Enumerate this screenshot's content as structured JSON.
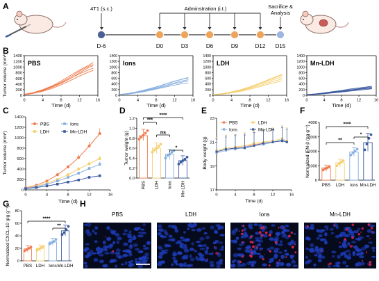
{
  "panels": {
    "A": {
      "letter": "A",
      "events": [
        {
          "day": "D-6",
          "label": "4T1 (s.c.)",
          "color": "#4a5f93"
        },
        {
          "day": "D0",
          "label": "",
          "color": "#eea45a"
        },
        {
          "day": "D3",
          "label": "",
          "color": "#eea45a"
        },
        {
          "day": "D6",
          "label": "",
          "color": "#eea45a"
        },
        {
          "day": "D9",
          "label": "",
          "color": "#eea45a"
        },
        {
          "day": "D12",
          "label": "",
          "color": "#eea45a"
        },
        {
          "day": "D15",
          "label": "",
          "color": "#9db6e0"
        }
      ],
      "administration_label": "Adminstration (i.t.)",
      "endpoint_label_1": "Sacrifice &",
      "endpoint_label_2": "Analysis"
    },
    "B": {
      "letter": "B"
    },
    "C": {
      "letter": "C"
    },
    "D": {
      "letter": "D"
    },
    "E": {
      "letter": "E"
    },
    "F": {
      "letter": "F"
    },
    "G": {
      "letter": "G"
    },
    "H": {
      "letter": "H",
      "images": [
        "PBS",
        "LDH",
        "Ions",
        "Mn-LDH"
      ]
    }
  },
  "colors": {
    "PBS": "#ef7c4e",
    "Ions": "#86aede",
    "LDH": "#f5cf6e",
    "Mn-LDH": "#3b5aa0"
  },
  "chart_data": [
    {
      "id": "B",
      "type": "line",
      "ylabel": "Tumor volume (mm³)",
      "xlabel": "Time (d)",
      "xlim": [
        0,
        16
      ],
      "ylim": [
        0,
        1400
      ],
      "xticks": [
        0,
        4,
        8,
        12,
        16
      ],
      "yticks": [
        0,
        200,
        400,
        600,
        800,
        1000,
        1200,
        1400
      ],
      "x": [
        0,
        2,
        4,
        6,
        8,
        10,
        12,
        14,
        15
      ],
      "groups": [
        {
          "name": "PBS",
          "color": "#ef7c4e",
          "curves": [
            [
              30,
              90,
              180,
              310,
              460,
              640,
              850,
              1020,
              1090
            ],
            [
              25,
              80,
              160,
              280,
              420,
              590,
              790,
              980,
              1050
            ],
            [
              35,
              100,
              200,
              330,
              500,
              700,
              890,
              1060,
              1160
            ],
            [
              28,
              85,
              170,
              290,
              430,
              600,
              760,
              900,
              960
            ],
            [
              20,
              70,
              140,
              240,
              370,
              520,
              680,
              820,
              880
            ]
          ]
        },
        {
          "name": "Ions",
          "color": "#86aede",
          "curves": [
            [
              25,
              60,
              120,
              200,
              290,
              390,
              490,
              580,
              610
            ],
            [
              22,
              55,
              110,
              180,
              260,
              350,
              440,
              520,
              550
            ],
            [
              30,
              70,
              130,
              210,
              300,
              400,
              500,
              590,
              630
            ],
            [
              20,
              50,
              100,
              170,
              240,
              320,
              410,
              480,
              510
            ],
            [
              18,
              45,
              90,
              150,
              220,
              290,
              360,
              420,
              440
            ]
          ]
        },
        {
          "name": "LDH",
          "color": "#f5cf6e",
          "curves": [
            [
              20,
              50,
              110,
              180,
              270,
              380,
              490,
              600,
              650
            ],
            [
              22,
              55,
              115,
              190,
              290,
              410,
              530,
              650,
              720
            ],
            [
              18,
              45,
              95,
              160,
              240,
              340,
              440,
              530,
              580
            ],
            [
              25,
              60,
              120,
              200,
              300,
              420,
              550,
              680,
              740
            ],
            [
              15,
              40,
              85,
              140,
              210,
              300,
              390,
              470,
              510
            ]
          ]
        },
        {
          "name": "Mn-LDH",
          "color": "#3b5aa0",
          "curves": [
            [
              20,
              40,
              70,
              110,
              150,
              190,
              230,
              270,
              280
            ],
            [
              15,
              35,
              60,
              95,
              130,
              170,
              210,
              250,
              260
            ],
            [
              25,
              50,
              85,
              130,
              170,
              220,
              260,
              300,
              320
            ],
            [
              18,
              38,
              65,
              100,
              140,
              180,
              215,
              240,
              250
            ],
            [
              12,
              30,
              55,
              85,
              115,
              150,
              185,
              210,
              230
            ]
          ]
        }
      ]
    },
    {
      "id": "C",
      "type": "line",
      "ylabel": "Tumor volume (mm³)",
      "xlabel": "Time (d)",
      "xlim": [
        0,
        16
      ],
      "ylim": [
        0,
        1400
      ],
      "xticks": [
        0,
        4,
        8,
        12,
        16
      ],
      "yticks": [
        0,
        200,
        400,
        600,
        800,
        1000,
        1200,
        1400
      ],
      "x": [
        0,
        2,
        4,
        6,
        8,
        10,
        12,
        14
      ],
      "series": [
        {
          "name": "PBS",
          "values": [
            40,
            90,
            170,
            290,
            440,
            620,
            840,
            1080
          ],
          "err": [
            8,
            12,
            20,
            30,
            40,
            60,
            80,
            100
          ]
        },
        {
          "name": "LDH",
          "values": [
            30,
            70,
            130,
            200,
            290,
            400,
            500,
            600
          ],
          "err": [
            6,
            10,
            15,
            20,
            30,
            40,
            50,
            60
          ]
        },
        {
          "name": "Ions",
          "values": [
            28,
            60,
            110,
            170,
            240,
            320,
            410,
            490
          ],
          "err": [
            5,
            8,
            12,
            18,
            24,
            30,
            40,
            50
          ]
        },
        {
          "name": "Mn-LDH",
          "values": [
            25,
            45,
            75,
            110,
            150,
            190,
            240,
            270
          ],
          "err": [
            4,
            6,
            10,
            14,
            18,
            20,
            25,
            30
          ]
        }
      ]
    },
    {
      "id": "D",
      "type": "bar",
      "ylabel": "Tumor weight (g)",
      "ylim": [
        0,
        1.2
      ],
      "yticks": [
        0,
        0.2,
        0.4,
        0.6,
        0.8,
        1.0,
        1.2
      ],
      "categories": [
        "PBS",
        "LDH",
        "Ions",
        "Mn-LDH"
      ],
      "values": [
        0.85,
        0.6,
        0.48,
        0.35
      ],
      "points": [
        [
          0.78,
          0.82,
          0.86,
          0.9,
          0.95
        ],
        [
          0.52,
          0.56,
          0.6,
          0.64,
          0.68
        ],
        [
          0.4,
          0.45,
          0.48,
          0.52,
          0.55
        ],
        [
          0.28,
          0.32,
          0.35,
          0.38,
          0.42
        ]
      ],
      "significance": [
        {
          "from": 0,
          "to": 1,
          "label": "***"
        },
        {
          "from": 0,
          "to": 3,
          "label": "****"
        },
        {
          "from": 1,
          "to": 2,
          "label": "ns"
        },
        {
          "from": 2,
          "to": 3,
          "label": "*"
        }
      ]
    },
    {
      "id": "E",
      "type": "line",
      "ylabel": "Body weight (g)",
      "xlabel": "Time (d)",
      "xlim": [
        0,
        16
      ],
      "ylim": [
        17,
        23
      ],
      "xticks": [
        0,
        4,
        8,
        12,
        16
      ],
      "yticks": [
        17,
        19,
        21,
        23
      ],
      "x": [
        0,
        2,
        4,
        6,
        8,
        10,
        12,
        14,
        15
      ],
      "series": [
        {
          "name": "PBS",
          "values": [
            20.2,
            20.4,
            20.5,
            20.6,
            20.8,
            20.9,
            21.0,
            21.1,
            21.0
          ]
        },
        {
          "name": "LDH",
          "values": [
            20.3,
            20.5,
            20.6,
            20.7,
            20.9,
            21.0,
            21.1,
            21.3,
            21.1
          ]
        },
        {
          "name": "Ions",
          "values": [
            20.1,
            20.3,
            20.4,
            20.6,
            20.7,
            20.8,
            21.0,
            21.2,
            21.0
          ]
        },
        {
          "name": "Mn-LDH",
          "values": [
            20.2,
            20.4,
            20.5,
            20.5,
            20.7,
            20.9,
            21.0,
            21.1,
            21.0
          ]
        }
      ]
    },
    {
      "id": "F",
      "type": "bar",
      "ylabel": "Normalized IFN-β (pg g⁻¹)",
      "ylim": [
        0,
        4000
      ],
      "yticks": [
        0,
        1000,
        2000,
        3000,
        4000
      ],
      "categories": [
        "PBS",
        "LDH",
        "Ions",
        "Mn-LDH"
      ],
      "values": [
        850,
        1200,
        1950,
        2600
      ],
      "points": [
        [
          700,
          800,
          850,
          950
        ],
        [
          1000,
          1150,
          1250,
          1350
        ],
        [
          1750,
          1900,
          2000,
          2150
        ],
        [
          2100,
          2500,
          2900,
          3150
        ]
      ],
      "significance": [
        {
          "from": 0,
          "to": 2,
          "label": "**"
        },
        {
          "from": 0,
          "to": 3,
          "label": "****"
        },
        {
          "from": 2,
          "to": 3,
          "label": "*"
        }
      ]
    },
    {
      "id": "G",
      "type": "bar",
      "ylabel": "Normalized CXCL-10 (pg g⁻¹)",
      "ylim": [
        0,
        80
      ],
      "yticks": [
        0,
        20,
        40,
        60,
        80
      ],
      "categories": [
        "PBS",
        "LDH",
        "Ions",
        "Mn-LDH"
      ],
      "values": [
        19,
        20,
        30,
        48
      ],
      "points": [
        [
          16,
          18,
          20,
          22
        ],
        [
          17,
          19,
          21,
          23
        ],
        [
          27,
          29,
          31,
          34
        ],
        [
          42,
          45,
          50,
          55
        ]
      ],
      "significance": [
        {
          "from": 0,
          "to": 3,
          "label": "****"
        },
        {
          "from": 2,
          "to": 3,
          "label": "**"
        }
      ]
    }
  ]
}
